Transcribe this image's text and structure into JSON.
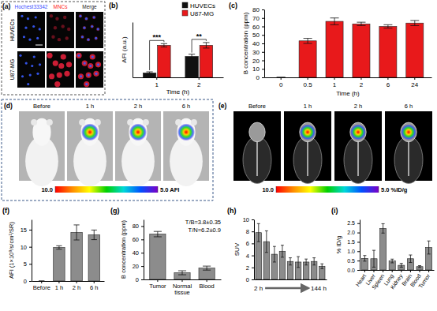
{
  "chart_data": [
    {
      "type": "bar",
      "title": "(b)",
      "x_label": "Time (h)",
      "y_label": "AFI (a.u.)",
      "categories": [
        "1",
        "2"
      ],
      "series": [
        {
          "name": "HUVECs",
          "color": "#111111",
          "values": [
            8,
            38
          ],
          "errors": [
            2,
            4
          ]
        },
        {
          "name": "U87-MG",
          "color": "#e8191b",
          "values": [
            58,
            58
          ],
          "errors": [
            3,
            5
          ]
        }
      ],
      "ylim": [
        0,
        100
      ],
      "tick_labels": "x",
      "legend": "upper right",
      "annotations": [
        "***",
        "**"
      ]
    },
    {
      "type": "bar",
      "title": "(c)",
      "x_label": "Time (h)",
      "y_label": "B concentration (ppm)",
      "categories": [
        "0",
        "0.5",
        "1",
        "2",
        "6",
        "24"
      ],
      "values": [
        0,
        43,
        66,
        63,
        60,
        64
      ],
      "errors": [
        0,
        3,
        4,
        2,
        2,
        3
      ],
      "color": "#e8191b",
      "ylim": [
        0,
        80
      ],
      "yticks": [
        0,
        10,
        20,
        30,
        40,
        50,
        60,
        70,
        80
      ]
    },
    {
      "type": "bar",
      "title": "(f)",
      "y_label": "AFI (1×10⁹/s/cm²/SR)",
      "categories": [
        "Before",
        "1 h",
        "2 h",
        "6 h"
      ],
      "values": [
        0,
        9.8,
        14.2,
        13.5
      ],
      "errors": [
        0,
        0.5,
        2.2,
        1.4
      ],
      "color": "#8c8c8c",
      "ylim": [
        0,
        18
      ],
      "yticks": [
        0,
        5,
        10,
        15
      ]
    },
    {
      "type": "bar",
      "title": "(g)",
      "y_label": "B concentration (ppm)",
      "categories": [
        "Tumor",
        "Normal tissue",
        "Blood"
      ],
      "values": [
        68,
        10,
        17
      ],
      "errors": [
        4,
        3,
        3
      ],
      "color": "#8c8c8c",
      "ylim": [
        0,
        90
      ],
      "yticks": [
        0,
        20,
        40,
        60,
        80
      ],
      "annotations": [
        "T/B=3.8±0.35",
        "T/N=6.2±0.9"
      ]
    },
    {
      "type": "bar",
      "title": "(h)",
      "y_label": "SUV",
      "categories": [
        null,
        null,
        null,
        null,
        null,
        null,
        null,
        null,
        null
      ],
      "values": [
        7.8,
        6.3,
        4.2,
        4.7,
        3.0,
        2.9,
        2.9,
        3.0,
        2.2
      ],
      "errors": [
        1.5,
        1.8,
        1.3,
        1.0,
        0.6,
        0.9,
        0.5,
        0.6,
        0.4
      ],
      "color": "#8c8c8c",
      "ylim": [
        0,
        10
      ],
      "yticks": [
        0,
        2,
        4,
        6,
        8,
        10
      ],
      "tick_labels": "y",
      "annotations": [
        "2 h",
        "144 h"
      ]
    },
    {
      "type": "bar",
      "title": "(i)",
      "y_label": "% ID/g",
      "categories": [
        "Heart",
        "Liver",
        "Spleen",
        "Lung",
        "Kidney",
        "Brain",
        "Blood",
        "Tumor"
      ],
      "values": [
        0.62,
        0.6,
        2.22,
        0.48,
        0.25,
        0.6,
        0.18,
        1.2
      ],
      "errors": [
        0.15,
        0.45,
        0.25,
        0.1,
        0.1,
        0.2,
        0.05,
        0.35
      ],
      "color": "#8c8c8c",
      "ylim": [
        0,
        2.7
      ],
      "yticks": [
        {
          "value": 0,
          "label": "0.0"
        },
        0.5,
        {
          "value": 1,
          "label": "1.0"
        },
        1.5,
        {
          "value": 2,
          "label": "2.0"
        },
        2.5
      ]
    }
  ],
  "images": [
    {
      "title": "(a)",
      "columns": [
        "Hochest33342",
        "MNCs",
        "Merge"
      ],
      "rows": [
        "HUVECs",
        "U87-MG"
      ]
    },
    {
      "title": "(d)",
      "frames": [
        "Before",
        "1 h",
        "2 h",
        "6 h"
      ],
      "colorbar": {
        "range": [
          10,
          5
        ],
        "ticks": [
          {
            "value": 10,
            "label": "10.0"
          },
          {
            "value": 5,
            "label": "5.0 AFI"
          }
        ]
      }
    },
    {
      "title": "(e)",
      "frames": [
        "Before",
        "1 h",
        "2 h",
        "6 h"
      ],
      "colorbar": {
        "range": [
          10,
          5
        ],
        "ticks": [
          {
            "value": 10,
            "label": "10.0"
          },
          {
            "value": 5,
            "label": "5.0 %ID/g"
          }
        ]
      }
    }
  ]
}
